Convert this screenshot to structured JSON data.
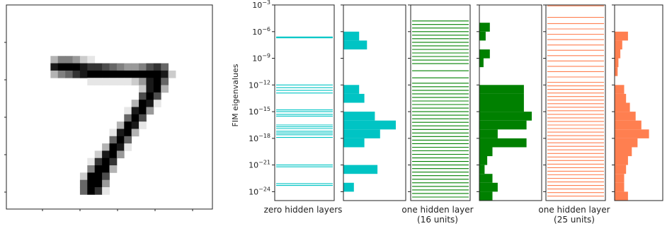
{
  "chart_data": [
    {
      "type": "image",
      "name": "mnist-digit",
      "description_label": "",
      "colormap": "gray_r",
      "pixel_grid": 28,
      "rows": [
        [
          0,
          0,
          0,
          0,
          0,
          0,
          0,
          0,
          0,
          0,
          0,
          0,
          0,
          0,
          0,
          0,
          0,
          0,
          0,
          0,
          0,
          0,
          0,
          0,
          0,
          0,
          0,
          0
        ],
        [
          0,
          0,
          0,
          0,
          0,
          0,
          0,
          0,
          0,
          0,
          0,
          0,
          0,
          0,
          0,
          0,
          0,
          0,
          0,
          0,
          0,
          0,
          0,
          0,
          0,
          0,
          0,
          0
        ],
        [
          0,
          0,
          0,
          0,
          0,
          0,
          0,
          0,
          0,
          0,
          0,
          0,
          0,
          0,
          0,
          0,
          0,
          0,
          0,
          0,
          0,
          0,
          0,
          0,
          0,
          0,
          0,
          0
        ],
        [
          0,
          0,
          0,
          0,
          0,
          0,
          0,
          0,
          0,
          0,
          0,
          0,
          0,
          0,
          0,
          0,
          0,
          0,
          0,
          0,
          0,
          0,
          0,
          0,
          0,
          0,
          0,
          0
        ],
        [
          0,
          0,
          0,
          0,
          0,
          0,
          0,
          0,
          0,
          0,
          0,
          0,
          0,
          0,
          0,
          0,
          0,
          0,
          0,
          0,
          0,
          0,
          0,
          0,
          0,
          0,
          0,
          0
        ],
        [
          0,
          0,
          0,
          0,
          0,
          0,
          0,
          0,
          0,
          0,
          0,
          0,
          0,
          0,
          0,
          0,
          0,
          0,
          0,
          0,
          0,
          0,
          0,
          0,
          0,
          0,
          0,
          0
        ],
        [
          0,
          0,
          0,
          0,
          0,
          0,
          0,
          0,
          0,
          0,
          0,
          0,
          0,
          0,
          0,
          0,
          0,
          0,
          0,
          0,
          0,
          0,
          0,
          0,
          0,
          0,
          0,
          0
        ],
        [
          0,
          0,
          0,
          0,
          0,
          0,
          0.3,
          0.5,
          0.5,
          0.4,
          0.2,
          0.1,
          0,
          0,
          0,
          0,
          0,
          0,
          0,
          0,
          0,
          0,
          0,
          0,
          0,
          0,
          0,
          0
        ],
        [
          0,
          0,
          0,
          0,
          0,
          0,
          0.9,
          1,
          1,
          1,
          0.9,
          0.8,
          0.8,
          0.7,
          0.6,
          0.5,
          0.4,
          0.4,
          0.5,
          0.7,
          0.8,
          0.6,
          0,
          0,
          0,
          0,
          0,
          0
        ],
        [
          0,
          0,
          0,
          0,
          0,
          0,
          0.3,
          0.5,
          0.6,
          0.8,
          0.9,
          1,
          1,
          1,
          1,
          1,
          1,
          1,
          1,
          1,
          1,
          0.9,
          0.2,
          0,
          0,
          0,
          0,
          0
        ],
        [
          0,
          0,
          0,
          0,
          0,
          0,
          0,
          0,
          0,
          0,
          0,
          0.1,
          0.1,
          0.1,
          0.1,
          0.1,
          0.1,
          0.2,
          0.4,
          0.9,
          1,
          0.6,
          0,
          0,
          0,
          0,
          0,
          0
        ],
        [
          0,
          0,
          0,
          0,
          0,
          0,
          0,
          0,
          0,
          0,
          0,
          0,
          0,
          0,
          0,
          0,
          0,
          0,
          0.2,
          0.9,
          1,
          0.3,
          0,
          0,
          0,
          0,
          0,
          0
        ],
        [
          0,
          0,
          0,
          0,
          0,
          0,
          0,
          0,
          0,
          0,
          0,
          0,
          0,
          0,
          0,
          0,
          0,
          0,
          0.7,
          1,
          0.7,
          0,
          0,
          0,
          0,
          0,
          0,
          0
        ],
        [
          0,
          0,
          0,
          0,
          0,
          0,
          0,
          0,
          0,
          0,
          0,
          0,
          0,
          0,
          0,
          0,
          0,
          0.3,
          1,
          0.9,
          0.1,
          0,
          0,
          0,
          0,
          0,
          0,
          0
        ],
        [
          0,
          0,
          0,
          0,
          0,
          0,
          0,
          0,
          0,
          0,
          0,
          0,
          0,
          0,
          0,
          0,
          0.1,
          0.9,
          1,
          0.4,
          0,
          0,
          0,
          0,
          0,
          0,
          0,
          0
        ],
        [
          0,
          0,
          0,
          0,
          0,
          0,
          0,
          0,
          0,
          0,
          0,
          0,
          0,
          0,
          0,
          0,
          0.6,
          1,
          0.7,
          0,
          0,
          0,
          0,
          0,
          0,
          0,
          0,
          0
        ],
        [
          0,
          0,
          0,
          0,
          0,
          0,
          0,
          0,
          0,
          0,
          0,
          0,
          0,
          0,
          0,
          0.3,
          1,
          0.9,
          0.1,
          0,
          0,
          0,
          0,
          0,
          0,
          0,
          0,
          0
        ],
        [
          0,
          0,
          0,
          0,
          0,
          0,
          0,
          0,
          0,
          0,
          0,
          0,
          0,
          0,
          0.1,
          0.9,
          1,
          0.3,
          0,
          0,
          0,
          0,
          0,
          0,
          0,
          0,
          0,
          0
        ],
        [
          0,
          0,
          0,
          0,
          0,
          0,
          0,
          0,
          0,
          0,
          0,
          0,
          0,
          0,
          0.6,
          1,
          0.6,
          0,
          0,
          0,
          0,
          0,
          0,
          0,
          0,
          0,
          0,
          0
        ],
        [
          0,
          0,
          0,
          0,
          0,
          0,
          0,
          0,
          0,
          0,
          0,
          0,
          0,
          0.3,
          1,
          0.9,
          0.1,
          0,
          0,
          0,
          0,
          0,
          0,
          0,
          0,
          0,
          0,
          0
        ],
        [
          0,
          0,
          0,
          0,
          0,
          0,
          0,
          0,
          0,
          0,
          0,
          0,
          0.2,
          0.9,
          1,
          0.4,
          0,
          0,
          0,
          0,
          0,
          0,
          0,
          0,
          0,
          0,
          0,
          0
        ],
        [
          0,
          0,
          0,
          0,
          0,
          0,
          0,
          0,
          0,
          0,
          0,
          0.1,
          0.8,
          1,
          0.8,
          0,
          0,
          0,
          0,
          0,
          0,
          0,
          0,
          0,
          0,
          0,
          0,
          0
        ],
        [
          0,
          0,
          0,
          0,
          0,
          0,
          0,
          0,
          0,
          0,
          0,
          0.5,
          1,
          1,
          0.3,
          0,
          0,
          0,
          0,
          0,
          0,
          0,
          0,
          0,
          0,
          0,
          0,
          0
        ],
        [
          0,
          0,
          0,
          0,
          0,
          0,
          0,
          0,
          0,
          0,
          0.2,
          1,
          1,
          0.7,
          0,
          0,
          0,
          0,
          0,
          0,
          0,
          0,
          0,
          0,
          0,
          0,
          0,
          0
        ],
        [
          0,
          0,
          0,
          0,
          0,
          0,
          0,
          0,
          0,
          0,
          0.6,
          1,
          1,
          0.4,
          0,
          0,
          0,
          0,
          0,
          0,
          0,
          0,
          0,
          0,
          0,
          0,
          0,
          0
        ],
        [
          0,
          0,
          0,
          0,
          0,
          0,
          0,
          0,
          0,
          0,
          0.6,
          1,
          0.8,
          0.1,
          0,
          0,
          0,
          0,
          0,
          0,
          0,
          0,
          0,
          0,
          0,
          0,
          0,
          0
        ],
        [
          0,
          0,
          0,
          0,
          0,
          0,
          0,
          0,
          0,
          0,
          0,
          0,
          0,
          0,
          0,
          0,
          0,
          0,
          0,
          0,
          0,
          0,
          0,
          0,
          0,
          0,
          0,
          0
        ],
        [
          0,
          0,
          0,
          0,
          0,
          0,
          0,
          0,
          0,
          0,
          0,
          0,
          0,
          0,
          0,
          0,
          0,
          0,
          0,
          0,
          0,
          0,
          0,
          0,
          0,
          0,
          0,
          0
        ]
      ]
    },
    {
      "type": "spectrum-and-histogram",
      "ylabel": "FIM eigenvalues",
      "yscale": "log",
      "ylim": [
        1e-25,
        0.001
      ],
      "yticks": [
        -3,
        -6,
        -9,
        -12,
        -15,
        -18,
        -21,
        -24
      ],
      "ytick_base": "10",
      "panels": [
        {
          "label": "zero hidden layers",
          "color": "#00c4c4",
          "eigenvalues_log10": [
            -6.6,
            -6.7,
            -12.0,
            -12.3,
            -12.6,
            -12.9,
            -14.8,
            -15.0,
            -15.3,
            -15.5,
            -16.5,
            -16.7,
            -16.9,
            -17.2,
            -17.4,
            -17.6,
            -17.9,
            -21.0,
            -21.2,
            -23.1,
            -23.3
          ],
          "histogram": {
            "bins_log10": [
              -6.0,
              -7.0,
              -12.0,
              -13.0,
              -15.0,
              -16.0,
              -17.0,
              -18.0,
              -21.0,
              -23.0
            ],
            "counts": [
              0.3,
              0.45,
              0.3,
              0.4,
              0.6,
              1.0,
              0.7,
              0.4,
              0.65,
              0.2
            ]
          }
        },
        {
          "label": "one hidden layer\n(16 units)",
          "color": "#008000",
          "eigenvalues_log10": [
            -4.8,
            -5.2,
            -5.6,
            -6.0,
            -6.4,
            -6.8,
            -7.2,
            -7.6,
            -8.0,
            -8.4,
            -8.8,
            -9.2,
            -9.6,
            -10.4,
            -11.2,
            -11.8,
            -12.2,
            -12.6,
            -13.0,
            -13.4,
            -13.8,
            -14.2,
            -14.6,
            -15.0,
            -15.4,
            -15.8,
            -16.2,
            -16.6,
            -17.0,
            -17.4,
            -17.8,
            -18.2,
            -18.6,
            -19.0,
            -19.4,
            -19.8,
            -20.2,
            -20.6,
            -21.0,
            -21.4,
            -21.8,
            -22.2,
            -22.6,
            -23.0,
            -23.4,
            -23.8,
            -24.2,
            -24.6
          ],
          "histogram": {
            "bins_log10": [
              -5.0,
              -6.0,
              -8.0,
              -9.0,
              -12.0,
              -13.0,
              -14.0,
              -15.0,
              -16.0,
              -17.0,
              -18.0,
              -19.0,
              -20.0,
              -21.0,
              -22.0,
              -23.0,
              -24.0
            ],
            "counts": [
              0.2,
              0.12,
              0.2,
              0.08,
              0.85,
              0.85,
              0.85,
              1.0,
              0.9,
              0.35,
              0.9,
              0.25,
              0.15,
              0.1,
              0.25,
              0.35,
              0.25
            ]
          }
        },
        {
          "label": "one hidden layer\n(25 units)",
          "color": "#ff7f50",
          "eigenvalues_log10": [
            -3.1,
            -4.4,
            -5.1,
            -5.7,
            -6.3,
            -6.9,
            -7.5,
            -8.1,
            -8.7,
            -9.3,
            -9.9,
            -10.5,
            -11.1,
            -11.7,
            -12.1,
            -12.5,
            -12.9,
            -13.3,
            -13.7,
            -14.1,
            -14.5,
            -14.9,
            -15.3,
            -15.7,
            -16.1,
            -16.5,
            -16.9,
            -17.3,
            -17.7,
            -18.1,
            -18.5,
            -18.9,
            -19.3,
            -19.7,
            -20.1,
            -20.5,
            -20.9,
            -21.3,
            -21.7,
            -22.1,
            -22.5,
            -22.9,
            -23.3,
            -23.7,
            -24.1,
            -24.5
          ],
          "histogram": {
            "bins_log10": [
              -6.0,
              -7.0,
              -8.0,
              -9.0,
              -10.0,
              -12.0,
              -13.0,
              -14.0,
              -15.0,
              -16.0,
              -17.0,
              -18.0,
              -19.0,
              -20.0,
              -21.0,
              -22.0,
              -23.0,
              -24.0
            ],
            "counts": [
              0.35,
              0.2,
              0.15,
              0.1,
              0.08,
              0.25,
              0.3,
              0.4,
              0.55,
              0.7,
              0.9,
              0.6,
              0.45,
              0.35,
              0.3,
              0.25,
              0.25,
              0.35
            ]
          }
        }
      ]
    }
  ]
}
